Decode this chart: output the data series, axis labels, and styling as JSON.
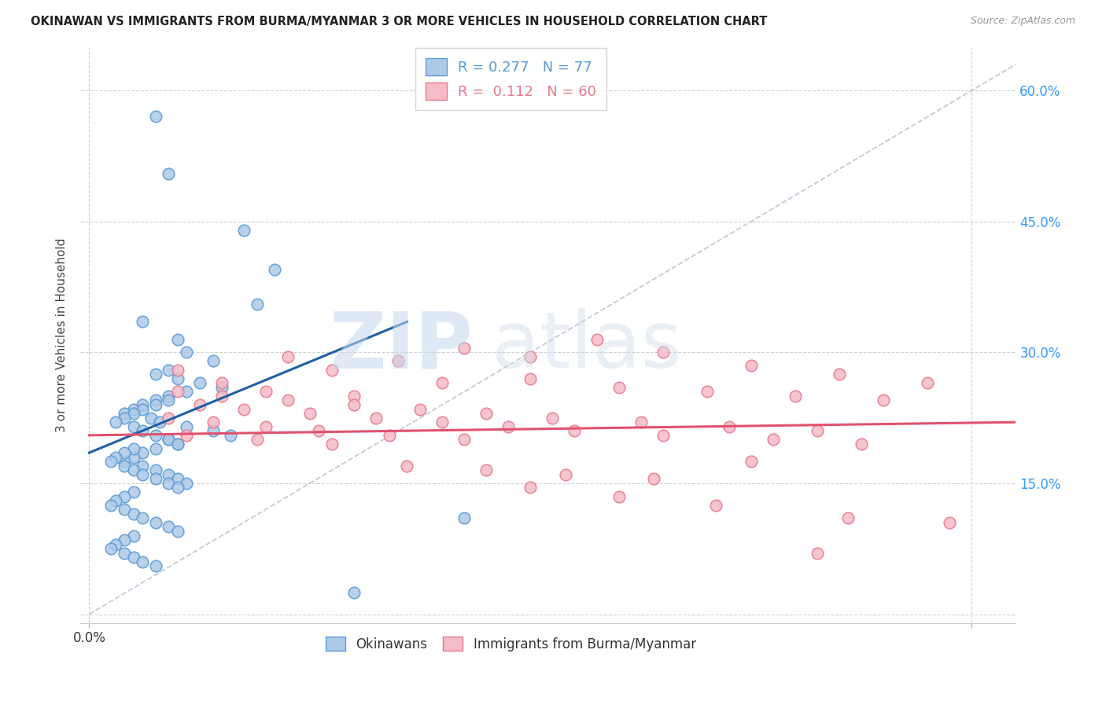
{
  "title": "OKINAWAN VS IMMIGRANTS FROM BURMA/MYANMAR 3 OR MORE VEHICLES IN HOUSEHOLD CORRELATION CHART",
  "source": "Source: ZipAtlas.com",
  "ylabel": "3 or more Vehicles in Household",
  "xlabel_vals": [
    0.0,
    0.5,
    1.0,
    1.5,
    2.0
  ],
  "xlabel_labels": [
    "0.0%",
    "",
    "",
    "",
    ""
  ],
  "xlim": [
    -0.02,
    2.1
  ],
  "ylim": [
    -1.0,
    65.0
  ],
  "right_yticks": [
    0,
    15,
    30,
    45,
    60
  ],
  "right_yticklabels": [
    "",
    "15.0%",
    "30.0%",
    "45.0%",
    "60.0%"
  ],
  "blue_label": "Okinawans",
  "pink_label": "Immigrants from Burma/Myanmar",
  "blue_R": "0.277",
  "blue_N": "77",
  "pink_R": "0.112",
  "pink_N": "60",
  "blue_color": "#adc9e8",
  "blue_edge": "#5b9bd5",
  "pink_color": "#f5bcc8",
  "pink_edge": "#e8788a",
  "blue_trend_color": "#1f5fa6",
  "pink_trend_color": "#e0526e",
  "diag_color": "#b0b8cc",
  "background": "#ffffff",
  "grid_color": "#cccccc",
  "title_color": "#222222",
  "right_axis_color": "#3399ff",
  "watermark_zip": "ZIP",
  "watermark_atlas": "atlas",
  "blue_x": [
    0.15,
    0.18,
    0.35,
    0.42,
    0.38,
    0.12,
    0.2,
    0.22,
    0.28,
    0.18,
    0.15,
    0.2,
    0.25,
    0.3,
    0.22,
    0.18,
    0.15,
    0.12,
    0.1,
    0.08,
    0.14,
    0.16,
    0.22,
    0.28,
    0.32,
    0.18,
    0.2,
    0.15,
    0.12,
    0.1,
    0.08,
    0.12,
    0.15,
    0.18,
    0.2,
    0.22,
    0.18,
    0.15,
    0.12,
    0.1,
    0.08,
    0.06,
    0.1,
    0.12,
    0.15,
    0.18,
    0.2,
    0.1,
    0.08,
    0.06,
    0.05,
    0.08,
    0.1,
    0.12,
    0.15,
    0.18,
    0.2,
    0.1,
    0.08,
    0.06,
    0.05,
    0.08,
    0.1,
    0.12,
    0.15,
    0.18,
    0.2,
    0.1,
    0.08,
    0.06,
    0.05,
    0.08,
    0.1,
    0.12,
    0.15,
    0.85,
    0.6
  ],
  "blue_y": [
    57.0,
    50.5,
    44.0,
    39.5,
    35.5,
    33.5,
    31.5,
    30.0,
    29.0,
    28.0,
    27.5,
    27.0,
    26.5,
    26.0,
    25.5,
    25.0,
    24.5,
    24.0,
    23.5,
    23.0,
    22.5,
    22.0,
    21.5,
    21.0,
    20.5,
    20.0,
    19.5,
    19.0,
    18.5,
    18.0,
    17.5,
    17.0,
    16.5,
    16.0,
    15.5,
    15.0,
    24.5,
    24.0,
    23.5,
    23.0,
    22.5,
    22.0,
    21.5,
    21.0,
    20.5,
    20.0,
    19.5,
    19.0,
    18.5,
    18.0,
    17.5,
    17.0,
    16.5,
    16.0,
    15.5,
    15.0,
    14.5,
    14.0,
    13.5,
    13.0,
    12.5,
    12.0,
    11.5,
    11.0,
    10.5,
    10.0,
    9.5,
    9.0,
    8.5,
    8.0,
    7.5,
    7.0,
    6.5,
    6.0,
    5.5,
    11.0,
    2.5
  ],
  "pink_x": [
    0.2,
    0.3,
    0.45,
    0.55,
    0.7,
    0.85,
    1.0,
    1.15,
    1.3,
    1.5,
    1.7,
    1.9,
    0.4,
    0.6,
    0.8,
    1.0,
    1.2,
    1.4,
    1.6,
    1.8,
    0.25,
    0.35,
    0.5,
    0.65,
    0.8,
    0.95,
    1.1,
    1.3,
    1.55,
    1.75,
    0.2,
    0.3,
    0.45,
    0.6,
    0.75,
    0.9,
    1.05,
    1.25,
    1.45,
    1.65,
    0.22,
    0.38,
    0.55,
    0.72,
    0.9,
    1.08,
    1.28,
    1.5,
    1.72,
    1.95,
    0.18,
    0.28,
    0.4,
    0.52,
    0.68,
    0.85,
    1.0,
    1.2,
    1.42,
    1.65
  ],
  "pink_y": [
    28.0,
    26.5,
    29.5,
    28.0,
    29.0,
    30.5,
    29.5,
    31.5,
    30.0,
    28.5,
    27.5,
    26.5,
    25.5,
    25.0,
    26.5,
    27.0,
    26.0,
    25.5,
    25.0,
    24.5,
    24.0,
    23.5,
    23.0,
    22.5,
    22.0,
    21.5,
    21.0,
    20.5,
    20.0,
    19.5,
    25.5,
    25.0,
    24.5,
    24.0,
    23.5,
    23.0,
    22.5,
    22.0,
    21.5,
    21.0,
    20.5,
    20.0,
    19.5,
    17.0,
    16.5,
    16.0,
    15.5,
    17.5,
    11.0,
    10.5,
    22.5,
    22.0,
    21.5,
    21.0,
    20.5,
    20.0,
    14.5,
    13.5,
    12.5,
    7.0
  ],
  "pink_trend_x0": 0.0,
  "pink_trend_y0": 20.5,
  "pink_trend_x1": 2.1,
  "pink_trend_y1": 22.0,
  "blue_trend_x0": 0.0,
  "blue_trend_y0": 18.5,
  "blue_trend_x1": 0.72,
  "blue_trend_y1": 33.5,
  "diag_x0": 0.0,
  "diag_y0": 0.0,
  "diag_x1": 2.1,
  "diag_y1": 63.0
}
